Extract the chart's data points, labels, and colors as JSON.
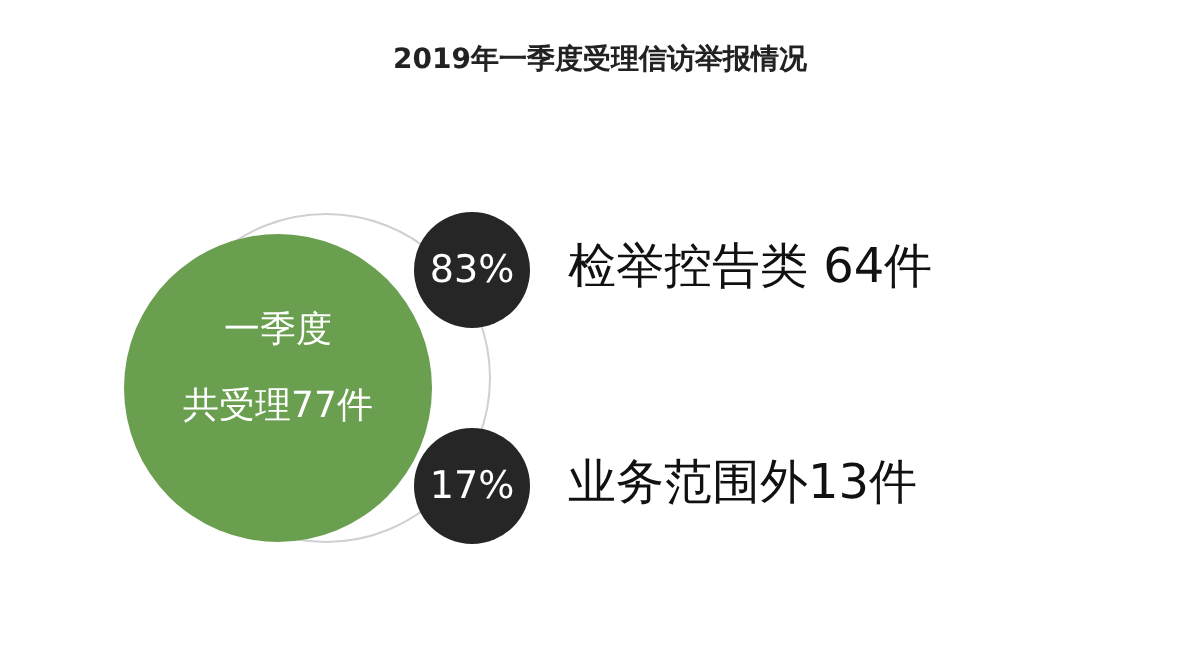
{
  "chart_data": {
    "type": "other",
    "title": "2019年一季度受理信访举报情况",
    "categories": [
      "检举控告类 64件",
      "业务范围外13件"
    ],
    "values": [
      83,
      17
    ],
    "value_labels": [
      "83%",
      "17%"
    ],
    "colors": [
      "#262626",
      "#262626"
    ],
    "annotations": [
      "一季度",
      "共受理77件"
    ],
    "color": "#6a9f4f"
  }
}
